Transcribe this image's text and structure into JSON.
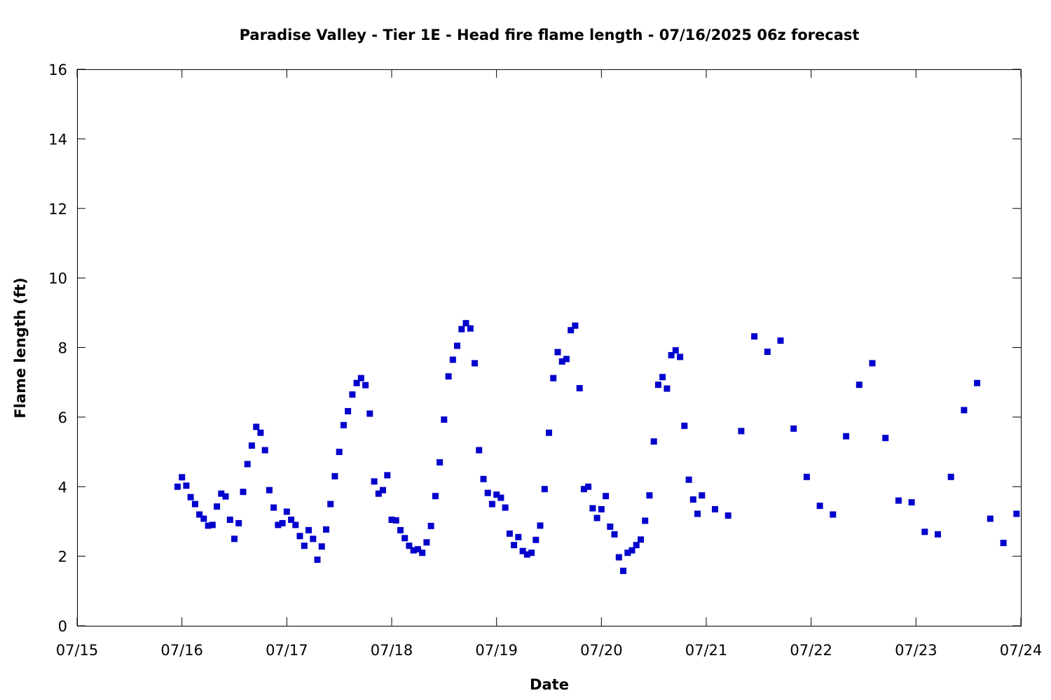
{
  "chart_data": {
    "type": "scatter",
    "title": "Paradise Valley - Tier 1E - Head fire flame length - 07/16/2025 06z forecast",
    "xlabel": "Date",
    "ylabel": "Flame length (ft)",
    "x_ticks": [
      "07/15",
      "07/16",
      "07/17",
      "07/18",
      "07/19",
      "07/20",
      "07/21",
      "07/22",
      "07/23",
      "07/24"
    ],
    "y_ticks": [
      "0",
      "2",
      "4",
      "6",
      "8",
      "10",
      "12",
      "14",
      "16"
    ],
    "ylim": [
      0,
      16
    ],
    "xlim": [
      "07/15 00:00",
      "07/24 00:00"
    ],
    "grid": false,
    "legend": "none",
    "marker_color": "#0000cc",
    "marker": "square",
    "series": [
      {
        "points": [
          [
            "07/15 23:00",
            4.0
          ],
          [
            "07/16 00:00",
            4.27
          ],
          [
            "07/16 01:00",
            4.03
          ],
          [
            "07/16 02:00",
            3.7
          ],
          [
            "07/16 03:00",
            3.5
          ],
          [
            "07/16 04:00",
            3.2
          ],
          [
            "07/16 05:00",
            3.08
          ],
          [
            "07/16 06:00",
            2.88
          ],
          [
            "07/16 07:00",
            2.9
          ],
          [
            "07/16 08:00",
            3.43
          ],
          [
            "07/16 09:00",
            3.8
          ],
          [
            "07/16 10:00",
            3.72
          ],
          [
            "07/16 11:00",
            3.05
          ],
          [
            "07/16 12:00",
            2.5
          ],
          [
            "07/16 13:00",
            2.95
          ],
          [
            "07/16 14:00",
            3.85
          ],
          [
            "07/16 15:00",
            4.65
          ],
          [
            "07/16 16:00",
            5.18
          ],
          [
            "07/16 17:00",
            5.72
          ],
          [
            "07/16 18:00",
            5.55
          ],
          [
            "07/16 19:00",
            5.05
          ],
          [
            "07/16 20:00",
            3.9
          ],
          [
            "07/16 21:00",
            3.4
          ],
          [
            "07/16 22:00",
            2.9
          ],
          [
            "07/16 23:00",
            2.95
          ],
          [
            "07/17 00:00",
            3.28
          ],
          [
            "07/17 01:00",
            3.05
          ],
          [
            "07/17 02:00",
            2.9
          ],
          [
            "07/17 03:00",
            2.58
          ],
          [
            "07/17 04:00",
            2.3
          ],
          [
            "07/17 05:00",
            2.75
          ],
          [
            "07/17 06:00",
            2.5
          ],
          [
            "07/17 07:00",
            1.9
          ],
          [
            "07/17 08:00",
            2.28
          ],
          [
            "07/17 09:00",
            2.77
          ],
          [
            "07/17 10:00",
            3.5
          ],
          [
            "07/17 11:00",
            4.3
          ],
          [
            "07/17 12:00",
            5.0
          ],
          [
            "07/17 13:00",
            5.77
          ],
          [
            "07/17 14:00",
            6.17
          ],
          [
            "07/17 15:00",
            6.65
          ],
          [
            "07/17 16:00",
            6.98
          ],
          [
            "07/17 17:00",
            7.12
          ],
          [
            "07/17 18:00",
            6.92
          ],
          [
            "07/17 19:00",
            6.1
          ],
          [
            "07/17 20:00",
            4.15
          ],
          [
            "07/17 21:00",
            3.8
          ],
          [
            "07/17 22:00",
            3.9
          ],
          [
            "07/17 23:00",
            4.33
          ],
          [
            "07/18 00:00",
            3.05
          ],
          [
            "07/18 01:00",
            3.03
          ],
          [
            "07/18 02:00",
            2.75
          ],
          [
            "07/18 03:00",
            2.52
          ],
          [
            "07/18 04:00",
            2.3
          ],
          [
            "07/18 05:00",
            2.17
          ],
          [
            "07/18 06:00",
            2.2
          ],
          [
            "07/18 07:00",
            2.1
          ],
          [
            "07/18 08:00",
            2.4
          ],
          [
            "07/18 09:00",
            2.87
          ],
          [
            "07/18 10:00",
            3.73
          ],
          [
            "07/18 11:00",
            4.7
          ],
          [
            "07/18 12:00",
            5.93
          ],
          [
            "07/18 13:00",
            7.17
          ],
          [
            "07/18 14:00",
            7.65
          ],
          [
            "07/18 15:00",
            8.05
          ],
          [
            "07/18 16:00",
            8.53
          ],
          [
            "07/18 17:00",
            8.7
          ],
          [
            "07/18 18:00",
            8.55
          ],
          [
            "07/18 19:00",
            7.55
          ],
          [
            "07/18 20:00",
            5.05
          ],
          [
            "07/18 21:00",
            4.22
          ],
          [
            "07/18 22:00",
            3.82
          ],
          [
            "07/18 23:00",
            3.5
          ],
          [
            "07/19 00:00",
            3.77
          ],
          [
            "07/19 01:00",
            3.68
          ],
          [
            "07/19 02:00",
            3.4
          ],
          [
            "07/19 03:00",
            2.65
          ],
          [
            "07/19 04:00",
            2.32
          ],
          [
            "07/19 05:00",
            2.55
          ],
          [
            "07/19 06:00",
            2.15
          ],
          [
            "07/19 07:00",
            2.05
          ],
          [
            "07/19 08:00",
            2.1
          ],
          [
            "07/19 09:00",
            2.47
          ],
          [
            "07/19 10:00",
            2.88
          ],
          [
            "07/19 11:00",
            3.93
          ],
          [
            "07/19 12:00",
            5.55
          ],
          [
            "07/19 13:00",
            7.12
          ],
          [
            "07/19 14:00",
            7.87
          ],
          [
            "07/19 15:00",
            7.6
          ],
          [
            "07/19 16:00",
            7.67
          ],
          [
            "07/19 17:00",
            8.5
          ],
          [
            "07/19 18:00",
            8.63
          ],
          [
            "07/19 19:00",
            6.83
          ],
          [
            "07/19 20:00",
            3.93
          ],
          [
            "07/19 21:00",
            4.0
          ],
          [
            "07/19 22:00",
            3.38
          ],
          [
            "07/19 23:00",
            3.1
          ],
          [
            "07/20 00:00",
            3.35
          ],
          [
            "07/20 01:00",
            3.73
          ],
          [
            "07/20 02:00",
            2.85
          ],
          [
            "07/20 03:00",
            2.63
          ],
          [
            "07/20 04:00",
            1.97
          ],
          [
            "07/20 05:00",
            1.58
          ],
          [
            "07/20 06:00",
            2.1
          ],
          [
            "07/20 07:00",
            2.17
          ],
          [
            "07/20 08:00",
            2.32
          ],
          [
            "07/20 09:00",
            2.48
          ],
          [
            "07/20 10:00",
            3.02
          ],
          [
            "07/20 11:00",
            3.75
          ],
          [
            "07/20 12:00",
            5.3
          ],
          [
            "07/20 13:00",
            6.93
          ],
          [
            "07/20 14:00",
            7.15
          ],
          [
            "07/20 15:00",
            6.82
          ],
          [
            "07/20 16:00",
            7.78
          ],
          [
            "07/20 17:00",
            7.92
          ],
          [
            "07/20 18:00",
            7.73
          ],
          [
            "07/20 19:00",
            5.75
          ],
          [
            "07/20 20:00",
            4.2
          ],
          [
            "07/20 21:00",
            3.63
          ],
          [
            "07/20 22:00",
            3.22
          ],
          [
            "07/20 23:00",
            3.75
          ],
          [
            "07/21 02:00",
            3.35
          ],
          [
            "07/21 05:00",
            3.17
          ],
          [
            "07/21 08:00",
            5.6
          ],
          [
            "07/21 11:00",
            8.32
          ],
          [
            "07/21 14:00",
            7.88
          ],
          [
            "07/21 17:00",
            8.2
          ],
          [
            "07/21 20:00",
            5.67
          ],
          [
            "07/21 23:00",
            4.28
          ],
          [
            "07/22 02:00",
            3.45
          ],
          [
            "07/22 05:00",
            3.2
          ],
          [
            "07/22 08:00",
            5.45
          ],
          [
            "07/22 11:00",
            6.93
          ],
          [
            "07/22 14:00",
            7.55
          ],
          [
            "07/22 17:00",
            5.4
          ],
          [
            "07/22 20:00",
            3.6
          ],
          [
            "07/22 23:00",
            3.55
          ],
          [
            "07/23 02:00",
            2.7
          ],
          [
            "07/23 05:00",
            2.63
          ],
          [
            "07/23 08:00",
            4.28
          ],
          [
            "07/23 11:00",
            6.2
          ],
          [
            "07/23 14:00",
            6.98
          ],
          [
            "07/23 17:00",
            3.08
          ],
          [
            "07/23 20:00",
            2.38
          ],
          [
            "07/23 23:00",
            3.22
          ]
        ]
      }
    ]
  }
}
